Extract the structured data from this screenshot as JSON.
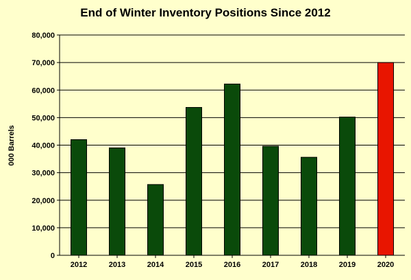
{
  "chart_data": {
    "type": "bar",
    "title": "End of Winter Inventory Positions Since 2012",
    "xlabel": "",
    "ylabel": "000 Barrels",
    "categories": [
      "2012",
      "2013",
      "2014",
      "2015",
      "2016",
      "2017",
      "2018",
      "2019",
      "2020"
    ],
    "values": [
      42000,
      39000,
      25700,
      53700,
      62200,
      39600,
      35600,
      50200,
      70000
    ],
    "ylim": [
      0,
      80000
    ],
    "yticks": [
      0,
      10000,
      20000,
      30000,
      40000,
      50000,
      60000,
      70000,
      80000
    ],
    "ytick_labels": [
      "0",
      "10,000",
      "20,000",
      "30,000",
      "40,000",
      "50,000",
      "60,000",
      "70,000",
      "80,000"
    ],
    "grid": true,
    "legend": "none",
    "colors": {
      "bar": "#0a4a0a",
      "bar_highlight": "#e81500",
      "background": "#ffffcc",
      "plot_background": "#ffffcc"
    },
    "highlight_category": "2020"
  }
}
